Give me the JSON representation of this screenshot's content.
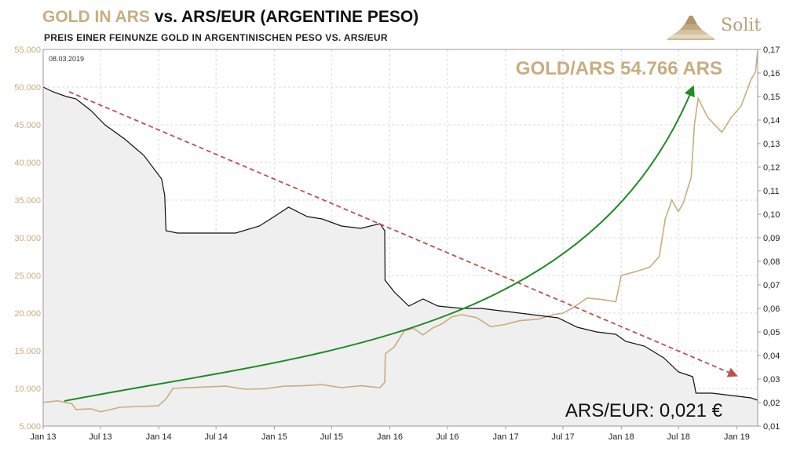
{
  "header": {
    "title_part1": "GOLD IN ARS",
    "title_part2": "vs. ARS/EUR (ARGENTINE PESO)",
    "subtitle": "PREIS  EINER  FEINUNZE  GOLD  IN ARGENTINISCHEN PESO VS. ARS/EUR",
    "logo_text": "Solit",
    "logo_icon": "pyramid-icon"
  },
  "chart_data": {
    "type": "line",
    "date_label": "08.03.2019",
    "x_tick_labels": [
      "Jan 13",
      "Jul 13",
      "Jan 14",
      "Jul 14",
      "Jan 15",
      "Jul 15",
      "Jan 16",
      "Jul 16",
      "Jan 17",
      "Jul 17",
      "Jan 18",
      "Jul 18",
      "Jan 19"
    ],
    "x_range": [
      "2013-01-01",
      "2019-03-08"
    ],
    "y_left": {
      "ylim": [
        5000,
        55000
      ],
      "tick_labels": [
        "5.000",
        "10.000",
        "15.000",
        "20.000",
        "25.000",
        "30.000",
        "35.000",
        "40.000",
        "45.000",
        "50.000",
        "55.000"
      ]
    },
    "y_right": {
      "ylim": [
        0.01,
        0.17
      ],
      "tick_labels": [
        "0,01",
        "0,02",
        "0,03",
        "0,04",
        "0,05",
        "0,06",
        "0,07",
        "0,08",
        "0,09",
        "0,10",
        "0,11",
        "0,12",
        "0,13",
        "0,14",
        "0,15",
        "0,16",
        "0,17"
      ]
    },
    "grid": true,
    "colors": {
      "gold": "#c8ad7f",
      "ars_eur": "#111111",
      "area": "#efefef",
      "trend": "#c0504d",
      "curve": "#1f8b24",
      "grid": "#d9d9d9"
    },
    "annotations": {
      "gold_value": "GOLD/ARS 54.766 ARS",
      "ars_eur_value": "ARS/EUR: 0,021 €"
    },
    "series": [
      {
        "id": "gold_ars",
        "axis": "left",
        "points": [
          [
            "2013-01-01",
            8150
          ],
          [
            "2013-02-15",
            8350
          ],
          [
            "2013-04-01",
            8000
          ],
          [
            "2013-04-15",
            7200
          ],
          [
            "2013-06-01",
            7300
          ],
          [
            "2013-07-01",
            6900
          ],
          [
            "2013-09-01",
            7500
          ],
          [
            "2013-11-01",
            7600
          ],
          [
            "2013-12-31",
            7700
          ],
          [
            "2014-01-24",
            8600
          ],
          [
            "2014-02-15",
            10000
          ],
          [
            "2014-04-01",
            10100
          ],
          [
            "2014-06-01",
            10200
          ],
          [
            "2014-08-01",
            10300
          ],
          [
            "2014-10-01",
            9900
          ],
          [
            "2014-12-01",
            9950
          ],
          [
            "2015-02-01",
            10300
          ],
          [
            "2015-04-01",
            10350
          ],
          [
            "2015-06-01",
            10500
          ],
          [
            "2015-08-01",
            10100
          ],
          [
            "2015-10-01",
            10350
          ],
          [
            "2015-12-01",
            10100
          ],
          [
            "2015-12-16",
            10800
          ],
          [
            "2015-12-18",
            14600
          ],
          [
            "2016-01-15",
            15500
          ],
          [
            "2016-02-15",
            17600
          ],
          [
            "2016-03-15",
            18000
          ],
          [
            "2016-04-15",
            17100
          ],
          [
            "2016-05-15",
            18000
          ],
          [
            "2016-06-15",
            18600
          ],
          [
            "2016-07-15",
            19500
          ],
          [
            "2016-08-15",
            19800
          ],
          [
            "2016-10-01",
            19400
          ],
          [
            "2016-11-15",
            18200
          ],
          [
            "2016-12-31",
            18500
          ],
          [
            "2017-02-15",
            19000
          ],
          [
            "2017-04-15",
            19200
          ],
          [
            "2017-06-01",
            19800
          ],
          [
            "2017-07-01",
            20000
          ],
          [
            "2017-08-01",
            20700
          ],
          [
            "2017-09-15",
            22000
          ],
          [
            "2017-11-01",
            21800
          ],
          [
            "2017-12-15",
            21500
          ],
          [
            "2018-01-01",
            25000
          ],
          [
            "2018-02-15",
            25500
          ],
          [
            "2018-04-01",
            26100
          ],
          [
            "2018-05-01",
            27500
          ],
          [
            "2018-05-20",
            32500
          ],
          [
            "2018-06-10",
            35000
          ],
          [
            "2018-06-30",
            33500
          ],
          [
            "2018-07-15",
            34500
          ],
          [
            "2018-08-10",
            38000
          ],
          [
            "2018-08-20",
            45000
          ],
          [
            "2018-09-01",
            48500
          ],
          [
            "2018-10-01",
            46000
          ],
          [
            "2018-11-15",
            44000
          ],
          [
            "2018-12-15",
            46000
          ],
          [
            "2019-01-15",
            47500
          ],
          [
            "2019-02-15",
            51000
          ],
          [
            "2019-03-01",
            52000
          ],
          [
            "2019-03-08",
            54766
          ]
        ]
      },
      {
        "id": "ars_eur",
        "axis": "right",
        "points": [
          [
            "2013-01-01",
            0.154
          ],
          [
            "2013-02-01",
            0.152
          ],
          [
            "2013-03-15",
            0.15
          ],
          [
            "2013-04-15",
            0.149
          ],
          [
            "2013-06-01",
            0.144
          ],
          [
            "2013-07-15",
            0.138
          ],
          [
            "2013-09-15",
            0.132
          ],
          [
            "2013-11-15",
            0.125
          ],
          [
            "2014-01-10",
            0.115
          ],
          [
            "2014-01-20",
            0.108
          ],
          [
            "2014-01-24",
            0.093
          ],
          [
            "2014-03-01",
            0.092
          ],
          [
            "2014-06-01",
            0.092
          ],
          [
            "2014-09-01",
            0.092
          ],
          [
            "2014-11-15",
            0.095
          ],
          [
            "2015-01-01",
            0.099
          ],
          [
            "2015-02-15",
            0.103
          ],
          [
            "2015-04-15",
            0.099
          ],
          [
            "2015-06-01",
            0.098
          ],
          [
            "2015-08-01",
            0.095
          ],
          [
            "2015-10-01",
            0.094
          ],
          [
            "2015-12-01",
            0.096
          ],
          [
            "2015-12-16",
            0.093
          ],
          [
            "2015-12-17",
            0.072
          ],
          [
            "2016-01-15",
            0.067
          ],
          [
            "2016-03-01",
            0.061
          ],
          [
            "2016-04-15",
            0.064
          ],
          [
            "2016-06-01",
            0.061
          ],
          [
            "2016-08-15",
            0.06
          ],
          [
            "2016-10-15",
            0.06
          ],
          [
            "2016-12-15",
            0.059
          ],
          [
            "2017-02-15",
            0.058
          ],
          [
            "2017-04-15",
            0.057
          ],
          [
            "2017-06-15",
            0.056
          ],
          [
            "2017-08-15",
            0.052
          ],
          [
            "2017-10-15",
            0.05
          ],
          [
            "2017-12-15",
            0.049
          ],
          [
            "2018-01-15",
            0.046
          ],
          [
            "2018-03-15",
            0.044
          ],
          [
            "2018-05-15",
            0.039
          ],
          [
            "2018-07-01",
            0.033
          ],
          [
            "2018-08-15",
            0.031
          ],
          [
            "2018-08-25",
            0.024
          ],
          [
            "2018-10-15",
            0.024
          ],
          [
            "2018-12-15",
            0.023
          ],
          [
            "2019-02-15",
            0.022
          ],
          [
            "2019-03-08",
            0.021
          ]
        ]
      }
    ]
  }
}
